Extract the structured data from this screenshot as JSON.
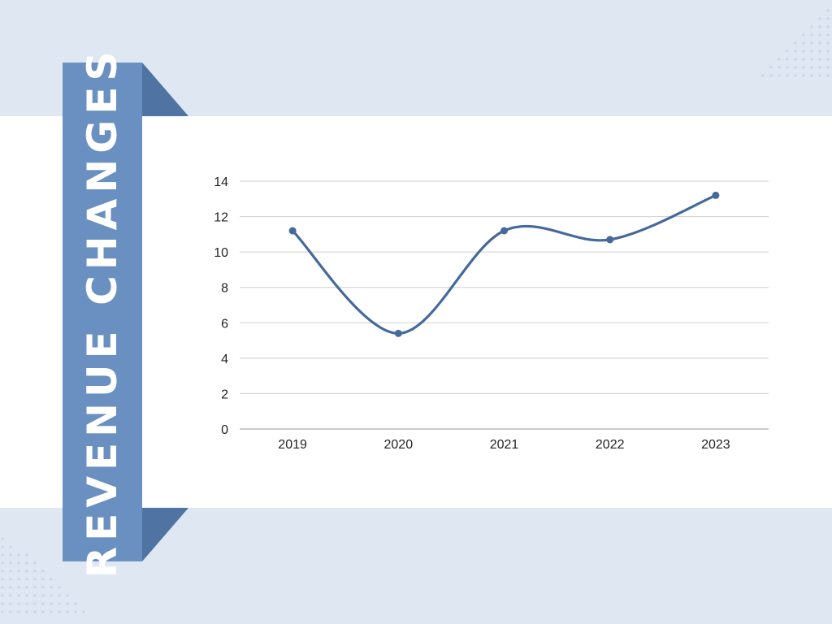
{
  "colors": {
    "background": "#dfe8f2",
    "ribbon": "#6990c0",
    "ribbon_fold": "#4f73a3",
    "line": "#45699a",
    "grid": "#cfcfcf",
    "text": "#222222"
  },
  "title": "REVENUE CHANGES",
  "chart_data": {
    "type": "line",
    "title": "REVENUE CHANGES",
    "categories": [
      "2019",
      "2020",
      "2021",
      "2022",
      "2023"
    ],
    "series": [
      {
        "values": [
          11.2,
          5.4,
          11.2,
          10.7,
          13.2
        ]
      }
    ],
    "ylim": [
      0,
      14
    ],
    "yticks": [
      0,
      2,
      4,
      6,
      8,
      10,
      12,
      14
    ],
    "smooth": true,
    "markers": true,
    "grid": true,
    "legend": "none"
  }
}
